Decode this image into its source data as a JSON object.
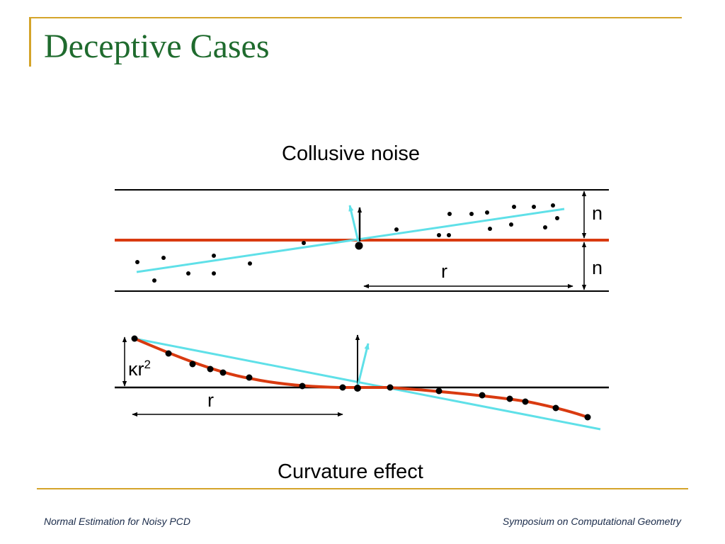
{
  "slide": {
    "title": "Deceptive Cases",
    "caption_top": "Collusive noise",
    "caption_bottom": "Curvature effect"
  },
  "diagram_top": {
    "label_n_upper": "n",
    "label_n_lower": "n",
    "label_r": "r"
  },
  "diagram_bottom": {
    "label_kappa": "κr",
    "label_kappa_exp": "2",
    "label_r": "r"
  },
  "footer": {
    "left": "Normal Estimation for Noisy PCD",
    "right": "Symposium on Computational Geometry"
  },
  "colors": {
    "accent": "#d4a42a",
    "title": "#1f6b2e",
    "surface": "#d93a10",
    "fit_line": "#5fe0e8"
  }
}
